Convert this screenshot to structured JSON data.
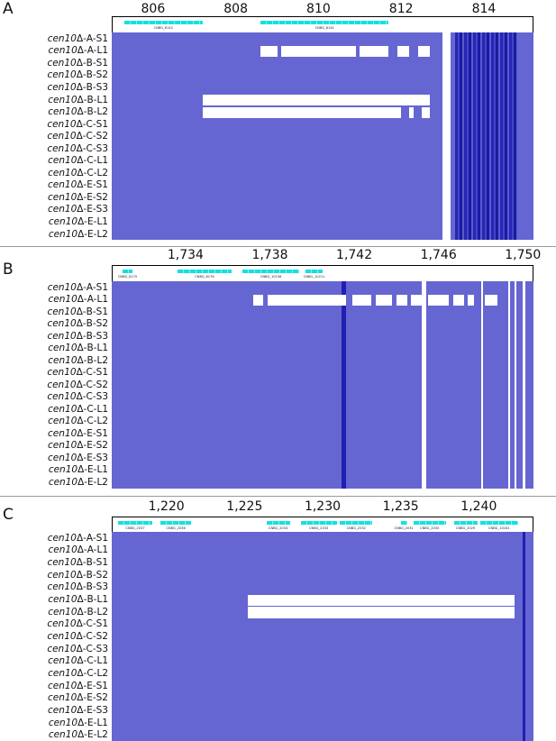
{
  "colors": {
    "coverage": "#6566d1",
    "deletion": "#ffffff",
    "high_coverage": "#1f20b0",
    "gene": "#14e0e0"
  },
  "row_labels": [
    {
      "italic": "cen10",
      "rest": "Δ-A-S1"
    },
    {
      "italic": "cen10",
      "rest": "Δ-A-L1"
    },
    {
      "italic": "cen10",
      "rest": "Δ-B-S1"
    },
    {
      "italic": "cen10",
      "rest": "Δ-B-S2"
    },
    {
      "italic": "cen10",
      "rest": "Δ-B-S3"
    },
    {
      "italic": "cen10",
      "rest": "Δ-B-L1"
    },
    {
      "italic": "cen10",
      "rest": "Δ-B-L2"
    },
    {
      "italic": "cen10",
      "rest": "Δ-C-S1"
    },
    {
      "italic": "cen10",
      "rest": "Δ-C-S2"
    },
    {
      "italic": "cen10",
      "rest": "Δ-C-S3"
    },
    {
      "italic": "cen10",
      "rest": "Δ-C-L1"
    },
    {
      "italic": "cen10",
      "rest": "Δ-C-L2"
    },
    {
      "italic": "cen10",
      "rest": "Δ-E-S1"
    },
    {
      "italic": "cen10",
      "rest": "Δ-E-S2"
    },
    {
      "italic": "cen10",
      "rest": "Δ-E-S3"
    },
    {
      "italic": "cen10",
      "rest": "Δ-E-L1"
    },
    {
      "italic": "cen10",
      "rest": "Δ-E-L2"
    }
  ],
  "chart_data": [
    {
      "type": "heatmap",
      "panel": "A",
      "xlim": [
        805,
        815.2
      ],
      "ticks": [
        {
          "value": 806,
          "label": "806"
        },
        {
          "value": 808,
          "label": "808"
        },
        {
          "value": 810,
          "label": "810"
        },
        {
          "value": 812,
          "label": "812"
        },
        {
          "value": 814,
          "label": "814"
        }
      ],
      "genes": [
        {
          "label": "CNBG_6142",
          "start": 805.3,
          "end": 807.2
        },
        {
          "label": "CNBG_6141",
          "start": 808.6,
          "end": 811.7
        }
      ],
      "deletions": [
        {
          "row": 1,
          "start": 808.6,
          "end": 809.0
        },
        {
          "row": 1,
          "start": 809.1,
          "end": 810.9
        },
        {
          "row": 1,
          "start": 811.0,
          "end": 811.7
        },
        {
          "row": 1,
          "start": 811.9,
          "end": 812.2
        },
        {
          "row": 1,
          "start": 812.4,
          "end": 812.7
        },
        {
          "row": 5,
          "start": 807.2,
          "end": 812.7
        },
        {
          "row": 6,
          "start": 807.2,
          "end": 812.0
        },
        {
          "row": 6,
          "start": 812.2,
          "end": 812.3
        },
        {
          "row": 6,
          "start": 812.5,
          "end": 812.7
        },
        {
          "row": "all",
          "start": 813.0,
          "end": 813.2
        }
      ],
      "high_coverage": [
        {
          "start": 813.3,
          "end": 814.8,
          "intensity": "strong"
        }
      ]
    },
    {
      "type": "heatmap",
      "panel": "B",
      "xlim": [
        1730.5,
        1750.5
      ],
      "ticks": [
        {
          "value": 1734,
          "label": "1,734"
        },
        {
          "value": 1738,
          "label": "1,738"
        },
        {
          "value": 1742,
          "label": "1,742"
        },
        {
          "value": 1746,
          "label": "1,746"
        },
        {
          "value": 1750,
          "label": "1,750"
        }
      ],
      "genes": [
        {
          "label": "CNBG_6175",
          "start": 1731.0,
          "end": 1731.5
        },
        {
          "label": "CNBG_6176",
          "start": 1733.6,
          "end": 1736.2
        },
        {
          "label": "CNBG_10156",
          "start": 1736.7,
          "end": 1739.4
        },
        {
          "label": "CNBG_10211",
          "start": 1739.7,
          "end": 1740.5
        }
      ],
      "deletions": [
        {
          "row": 1,
          "start": 1737.2,
          "end": 1737.7
        },
        {
          "row": 1,
          "start": 1737.9,
          "end": 1741.6
        },
        {
          "row": 1,
          "start": 1741.9,
          "end": 1742.8
        },
        {
          "row": 1,
          "start": 1743.0,
          "end": 1743.8
        },
        {
          "row": 1,
          "start": 1744.0,
          "end": 1744.5
        },
        {
          "row": 1,
          "start": 1744.7,
          "end": 1745.2
        },
        {
          "row": 1,
          "start": 1745.5,
          "end": 1746.5
        },
        {
          "row": 1,
          "start": 1746.7,
          "end": 1747.2
        },
        {
          "row": 1,
          "start": 1747.4,
          "end": 1747.7
        },
        {
          "row": 1,
          "start": 1748.2,
          "end": 1748.8
        },
        {
          "row": "all",
          "start": 1745.2,
          "end": 1745.4
        },
        {
          "row": "all",
          "start": 1748.0,
          "end": 1748.1
        },
        {
          "row": "all",
          "start": 1749.3,
          "end": 1749.4
        },
        {
          "row": "all",
          "start": 1749.6,
          "end": 1749.7
        },
        {
          "row": "all",
          "start": 1750.0,
          "end": 1750.1
        }
      ],
      "high_coverage": [
        {
          "start": 1741.4,
          "end": 1741.6,
          "intensity": "strong"
        }
      ]
    },
    {
      "type": "heatmap",
      "panel": "C",
      "xlim": [
        1216.5,
        1243.5
      ],
      "ticks": [
        {
          "value": 1220,
          "label": "1,220"
        },
        {
          "value": 1225,
          "label": "1,225"
        },
        {
          "value": 1230,
          "label": "1,230"
        },
        {
          "value": 1235,
          "label": "1,235"
        },
        {
          "value": 1240,
          "label": "1,240"
        }
      ],
      "genes": [
        {
          "label": "CNBG_2037",
          "start": 1216.9,
          "end": 1219.1
        },
        {
          "label": "CNBG_2036",
          "start": 1219.6,
          "end": 1221.6
        },
        {
          "label": "CNBG_2034",
          "start": 1226.4,
          "end": 1227.9
        },
        {
          "label": "CNBG_2033",
          "start": 1228.6,
          "end": 1230.9
        },
        {
          "label": "CNBG_2032",
          "start": 1231.1,
          "end": 1233.2
        },
        {
          "label": "CNBG_2031",
          "start": 1235.0,
          "end": 1235.4
        },
        {
          "label": "CNBG_2030",
          "start": 1235.8,
          "end": 1237.9
        },
        {
          "label": "CNBG_2029",
          "start": 1238.4,
          "end": 1239.9
        },
        {
          "label": "CNBG_10161",
          "start": 1240.1,
          "end": 1242.5
        }
      ],
      "deletions": [
        {
          "row": 5,
          "start": 1225.2,
          "end": 1242.3
        },
        {
          "row": 6,
          "start": 1225.2,
          "end": 1242.3
        }
      ],
      "high_coverage": [
        {
          "start": 1242.8,
          "end": 1243.0,
          "intensity": "strong"
        }
      ]
    }
  ]
}
